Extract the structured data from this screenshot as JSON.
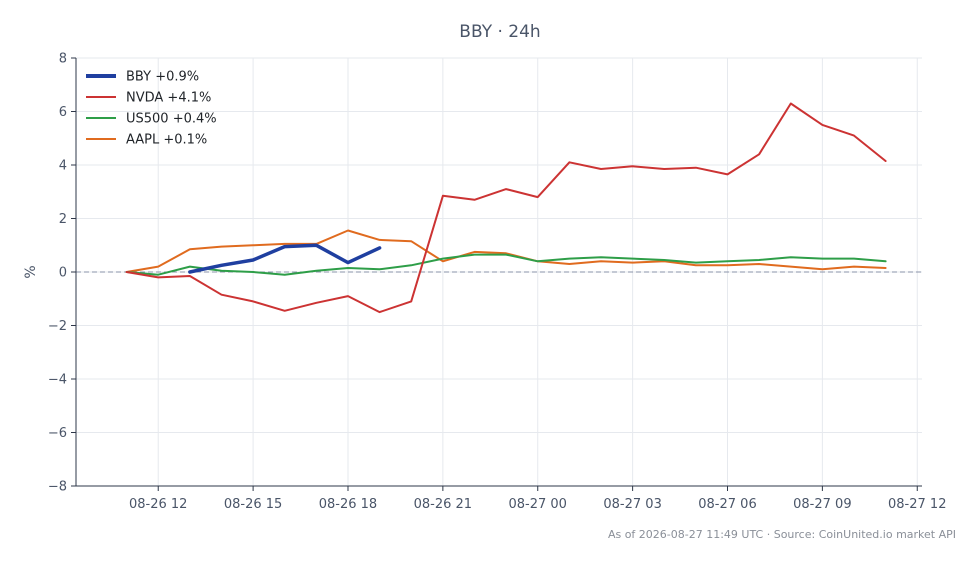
{
  "chart_data": {
    "type": "line",
    "title": "BBY · 24h",
    "ylabel": "%",
    "xlabel": "",
    "ylim": [
      -8,
      8
    ],
    "yticks": [
      -8,
      -6,
      -4,
      -2,
      0,
      2,
      4,
      6,
      8
    ],
    "ytick_labels": [
      "−8",
      "−6",
      "−4",
      "−2",
      "0",
      "2",
      "4",
      "6",
      "8"
    ],
    "xlim": [
      "2026-08-26 09:24",
      "2026-08-27 12:09"
    ],
    "xticks": [
      "2026-08-26 12:00",
      "2026-08-26 15:00",
      "2026-08-26 18:00",
      "2026-08-26 21:00",
      "2026-08-27 00:00",
      "2026-08-27 03:00",
      "2026-08-27 06:00",
      "2026-08-27 09:00",
      "2026-08-27 12:00"
    ],
    "xtick_labels": [
      "08-26 12",
      "08-26 15",
      "08-26 18",
      "08-26 21",
      "08-27 00",
      "08-27 03",
      "08-27 06",
      "08-27 09",
      "08-27 12"
    ],
    "grid": true,
    "legend_position": "top-left",
    "zero_line": true,
    "series": [
      {
        "name": "BBY +0.9%",
        "color": "#1f3fa0",
        "bold": true,
        "x": [
          "2026-08-26 13:00",
          "2026-08-26 14:00",
          "2026-08-26 15:00",
          "2026-08-26 16:00",
          "2026-08-26 17:00",
          "2026-08-26 18:00",
          "2026-08-26 19:00"
        ],
        "y": [
          0.0,
          0.25,
          0.45,
          0.95,
          1.0,
          0.35,
          0.9
        ]
      },
      {
        "name": "NVDA +4.1%",
        "color": "#cc3333",
        "bold": false,
        "x": [
          "2026-08-26 11:00",
          "2026-08-26 12:00",
          "2026-08-26 13:00",
          "2026-08-26 14:00",
          "2026-08-26 15:00",
          "2026-08-26 16:00",
          "2026-08-26 17:00",
          "2026-08-26 18:00",
          "2026-08-26 19:00",
          "2026-08-26 20:00",
          "2026-08-26 21:00",
          "2026-08-26 22:00",
          "2026-08-26 23:00",
          "2026-08-27 00:00",
          "2026-08-27 01:00",
          "2026-08-27 02:00",
          "2026-08-27 03:00",
          "2026-08-27 04:00",
          "2026-08-27 05:00",
          "2026-08-27 06:00",
          "2026-08-27 07:00",
          "2026-08-27 08:00",
          "2026-08-27 09:00",
          "2026-08-27 10:00",
          "2026-08-27 11:00"
        ],
        "y": [
          0.0,
          -0.2,
          -0.15,
          -0.85,
          -1.1,
          -1.45,
          -1.15,
          -0.9,
          -1.5,
          -1.1,
          2.85,
          2.7,
          3.1,
          2.8,
          4.1,
          3.85,
          3.95,
          3.85,
          3.9,
          3.65,
          4.4,
          6.3,
          5.5,
          5.1,
          4.15
        ]
      },
      {
        "name": "US500 +0.4%",
        "color": "#2e9e48",
        "bold": false,
        "x": [
          "2026-08-26 11:00",
          "2026-08-26 12:00",
          "2026-08-26 13:00",
          "2026-08-26 14:00",
          "2026-08-26 15:00",
          "2026-08-26 16:00",
          "2026-08-26 17:00",
          "2026-08-26 18:00",
          "2026-08-26 19:00",
          "2026-08-26 20:00",
          "2026-08-26 21:00",
          "2026-08-26 22:00",
          "2026-08-26 23:00",
          "2026-08-27 00:00",
          "2026-08-27 01:00",
          "2026-08-27 02:00",
          "2026-08-27 03:00",
          "2026-08-27 04:00",
          "2026-08-27 05:00",
          "2026-08-27 06:00",
          "2026-08-27 07:00",
          "2026-08-27 08:00",
          "2026-08-27 09:00",
          "2026-08-27 10:00",
          "2026-08-27 11:00"
        ],
        "y": [
          0.0,
          -0.1,
          0.2,
          0.05,
          0.0,
          -0.1,
          0.05,
          0.15,
          0.1,
          0.25,
          0.5,
          0.65,
          0.65,
          0.4,
          0.5,
          0.55,
          0.5,
          0.45,
          0.35,
          0.4,
          0.45,
          0.55,
          0.5,
          0.5,
          0.4
        ]
      },
      {
        "name": "AAPL +0.1%",
        "color": "#e06b1f",
        "bold": false,
        "x": [
          "2026-08-26 11:00",
          "2026-08-26 12:00",
          "2026-08-26 13:00",
          "2026-08-26 14:00",
          "2026-08-26 15:00",
          "2026-08-26 16:00",
          "2026-08-26 17:00",
          "2026-08-26 18:00",
          "2026-08-26 19:00",
          "2026-08-26 20:00",
          "2026-08-26 21:00",
          "2026-08-26 22:00",
          "2026-08-26 23:00",
          "2026-08-27 00:00",
          "2026-08-27 01:00",
          "2026-08-27 02:00",
          "2026-08-27 03:00",
          "2026-08-27 04:00",
          "2026-08-27 05:00",
          "2026-08-27 06:00",
          "2026-08-27 07:00",
          "2026-08-27 08:00",
          "2026-08-27 09:00",
          "2026-08-27 10:00",
          "2026-08-27 11:00"
        ],
        "y": [
          0.0,
          0.2,
          0.85,
          0.95,
          1.0,
          1.05,
          1.05,
          1.55,
          1.2,
          1.15,
          0.4,
          0.75,
          0.7,
          0.4,
          0.3,
          0.4,
          0.35,
          0.4,
          0.25,
          0.25,
          0.3,
          0.2,
          0.1,
          0.2,
          0.15
        ]
      }
    ],
    "footer": "As of 2026-08-27 11:49 UTC · Source: CoinUnited.io market API"
  }
}
